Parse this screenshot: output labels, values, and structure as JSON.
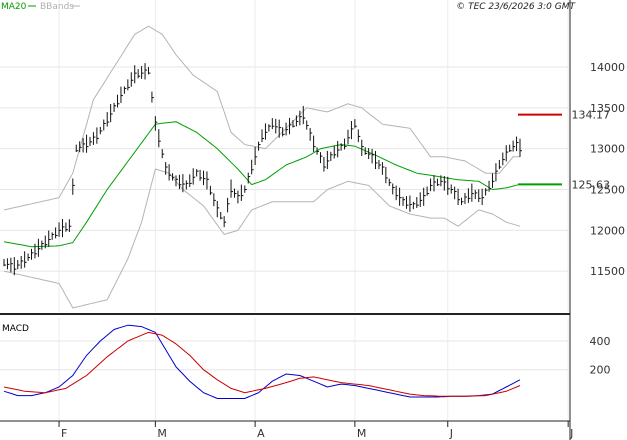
{
  "chart_data": [
    {
      "type": "line",
      "panel": "price",
      "header": {
        "legend": [
          {
            "label": "MA20",
            "color": "#00a000"
          },
          {
            "label": "BBands",
            "color": "#b0b0b0"
          }
        ],
        "copyright": "© TEC 23/6/2026 3:0 GMT"
      },
      "ylim": [
        11000,
        14600
      ],
      "yticks": [
        {
          "value": 14000,
          "label": "14000"
        },
        {
          "value": 13500,
          "label": "13500"
        },
        {
          "value": 13000,
          "label": "13000"
        },
        {
          "value": 12500,
          "label": "12500"
        },
        {
          "value": 12000,
          "label": "12000"
        },
        {
          "value": 11500,
          "label": "11500"
        }
      ],
      "xticks": [
        {
          "day": 16,
          "label": "F"
        },
        {
          "day": 44,
          "label": "M"
        },
        {
          "day": 73,
          "label": "A"
        },
        {
          "day": 102,
          "label": "M"
        },
        {
          "day": 129,
          "label": "J"
        },
        {
          "day": 164,
          "label": "J"
        }
      ],
      "x_range": [
        0,
        170
      ],
      "grid": true,
      "levels": [
        {
          "name": "resistance",
          "value": 13417,
          "label": "134.17",
          "color": "#cc0000"
        },
        {
          "name": "support",
          "value": 12563,
          "label": "125.63",
          "color": "#00a000"
        }
      ],
      "price_keys": [
        [
          0,
          11600
        ],
        [
          3,
          11550
        ],
        [
          5,
          11600
        ],
        [
          8,
          11700
        ],
        [
          12,
          11850
        ],
        [
          16,
          12000
        ],
        [
          19,
          12050
        ],
        [
          21,
          13000
        ],
        [
          24,
          13050
        ],
        [
          27,
          13150
        ],
        [
          30,
          13350
        ],
        [
          34,
          13650
        ],
        [
          38,
          13900
        ],
        [
          42,
          13950
        ],
        [
          44,
          13300
        ],
        [
          47,
          12750
        ],
        [
          50,
          12600
        ],
        [
          53,
          12550
        ],
        [
          56,
          12700
        ],
        [
          59,
          12600
        ],
        [
          62,
          12250
        ],
        [
          64,
          12100
        ],
        [
          66,
          12500
        ],
        [
          68,
          12400
        ],
        [
          70,
          12500
        ],
        [
          73,
          12900
        ],
        [
          75,
          13150
        ],
        [
          78,
          13300
        ],
        [
          81,
          13200
        ],
        [
          84,
          13300
        ],
        [
          87,
          13400
        ],
        [
          90,
          13050
        ],
        [
          93,
          12800
        ],
        [
          96,
          12950
        ],
        [
          99,
          13050
        ],
        [
          102,
          13300
        ],
        [
          104,
          13000
        ],
        [
          107,
          12900
        ],
        [
          110,
          12750
        ],
        [
          113,
          12500
        ],
        [
          116,
          12350
        ],
        [
          119,
          12300
        ],
        [
          122,
          12400
        ],
        [
          124,
          12550
        ],
        [
          127,
          12600
        ],
        [
          130,
          12500
        ],
        [
          133,
          12350
        ],
        [
          136,
          12450
        ],
        [
          139,
          12400
        ],
        [
          142,
          12600
        ],
        [
          144,
          12800
        ],
        [
          147,
          13000
        ],
        [
          149,
          13050
        ],
        [
          150,
          13000
        ]
      ],
      "ma20_keys": [
        [
          0,
          11860
        ],
        [
          8,
          11800
        ],
        [
          16,
          11810
        ],
        [
          20,
          11850
        ],
        [
          24,
          12100
        ],
        [
          30,
          12500
        ],
        [
          37,
          12900
        ],
        [
          44,
          13300
        ],
        [
          50,
          13330
        ],
        [
          56,
          13200
        ],
        [
          62,
          13000
        ],
        [
          68,
          12750
        ],
        [
          72,
          12560
        ],
        [
          76,
          12620
        ],
        [
          82,
          12800
        ],
        [
          88,
          12900
        ],
        [
          92,
          13000
        ],
        [
          98,
          13050
        ],
        [
          102,
          13030
        ],
        [
          108,
          12920
        ],
        [
          114,
          12800
        ],
        [
          120,
          12700
        ],
        [
          126,
          12660
        ],
        [
          132,
          12620
        ],
        [
          138,
          12600
        ],
        [
          142,
          12500
        ],
        [
          146,
          12520
        ],
        [
          150,
          12563
        ]
      ],
      "upper_keys": [
        [
          0,
          12250
        ],
        [
          16,
          12400
        ],
        [
          20,
          12700
        ],
        [
          26,
          13600
        ],
        [
          32,
          14000
        ],
        [
          38,
          14400
        ],
        [
          42,
          14500
        ],
        [
          46,
          14400
        ],
        [
          50,
          14150
        ],
        [
          55,
          13900
        ],
        [
          62,
          13700
        ],
        [
          66,
          13200
        ],
        [
          70,
          13050
        ],
        [
          76,
          13000
        ],
        [
          82,
          13250
        ],
        [
          88,
          13500
        ],
        [
          94,
          13450
        ],
        [
          100,
          13550
        ],
        [
          104,
          13500
        ],
        [
          110,
          13300
        ],
        [
          118,
          13250
        ],
        [
          124,
          12900
        ],
        [
          128,
          12900
        ],
        [
          134,
          12850
        ],
        [
          140,
          12700
        ],
        [
          144,
          12700
        ],
        [
          148,
          12900
        ],
        [
          150,
          12900
        ]
      ],
      "lower_keys": [
        [
          0,
          11500
        ],
        [
          16,
          11350
        ],
        [
          20,
          11050
        ],
        [
          30,
          11150
        ],
        [
          36,
          11650
        ],
        [
          40,
          12100
        ],
        [
          44,
          12750
        ],
        [
          48,
          12700
        ],
        [
          52,
          12500
        ],
        [
          58,
          12300
        ],
        [
          64,
          11950
        ],
        [
          68,
          12000
        ],
        [
          72,
          12250
        ],
        [
          78,
          12350
        ],
        [
          84,
          12350
        ],
        [
          90,
          12350
        ],
        [
          94,
          12500
        ],
        [
          100,
          12600
        ],
        [
          106,
          12550
        ],
        [
          112,
          12300
        ],
        [
          118,
          12200
        ],
        [
          124,
          12150
        ],
        [
          128,
          12150
        ],
        [
          132,
          12050
        ],
        [
          138,
          12250
        ],
        [
          142,
          12200
        ],
        [
          146,
          12100
        ],
        [
          150,
          12050
        ]
      ]
    },
    {
      "type": "line",
      "panel": "macd",
      "title": "MACD",
      "ylim": [
        -150,
        560
      ],
      "yticks": [
        {
          "value": 400,
          "label": "400"
        },
        {
          "value": 200,
          "label": "200"
        }
      ],
      "series": [
        {
          "name": "",
          "color": "#0000cc",
          "keys": [
            [
              0,
              50
            ],
            [
              4,
              20
            ],
            [
              8,
              20
            ],
            [
              12,
              40
            ],
            [
              16,
              80
            ],
            [
              20,
              160
            ],
            [
              24,
              300
            ],
            [
              28,
              400
            ],
            [
              32,
              480
            ],
            [
              36,
              510
            ],
            [
              40,
              500
            ],
            [
              44,
              460
            ],
            [
              47,
              340
            ],
            [
              50,
              220
            ],
            [
              54,
              120
            ],
            [
              58,
              40
            ],
            [
              62,
              0
            ],
            [
              66,
              0
            ],
            [
              70,
              0
            ],
            [
              74,
              40
            ],
            [
              78,
              120
            ],
            [
              82,
              170
            ],
            [
              86,
              160
            ],
            [
              90,
              120
            ],
            [
              94,
              80
            ],
            [
              98,
              100
            ],
            [
              102,
              90
            ],
            [
              106,
              70
            ],
            [
              110,
              50
            ],
            [
              114,
              30
            ],
            [
              118,
              10
            ],
            [
              122,
              10
            ],
            [
              126,
              10
            ],
            [
              130,
              15
            ],
            [
              134,
              15
            ],
            [
              138,
              20
            ],
            [
              142,
              30
            ],
            [
              146,
              80
            ],
            [
              150,
              130
            ]
          ]
        },
        {
          "name": "",
          "color": "#cc0000",
          "keys": [
            [
              0,
              80
            ],
            [
              6,
              50
            ],
            [
              12,
              40
            ],
            [
              18,
              70
            ],
            [
              24,
              160
            ],
            [
              30,
              290
            ],
            [
              36,
              400
            ],
            [
              42,
              460
            ],
            [
              46,
              440
            ],
            [
              50,
              380
            ],
            [
              54,
              300
            ],
            [
              58,
              200
            ],
            [
              62,
              130
            ],
            [
              66,
              70
            ],
            [
              70,
              40
            ],
            [
              76,
              70
            ],
            [
              82,
              110
            ],
            [
              86,
              140
            ],
            [
              90,
              150
            ],
            [
              94,
              130
            ],
            [
              98,
              110
            ],
            [
              102,
              100
            ],
            [
              106,
              90
            ],
            [
              112,
              60
            ],
            [
              118,
              30
            ],
            [
              122,
              20
            ],
            [
              128,
              15
            ],
            [
              134,
              15
            ],
            [
              140,
              20
            ],
            [
              146,
              50
            ],
            [
              150,
              90
            ]
          ]
        }
      ]
    }
  ]
}
